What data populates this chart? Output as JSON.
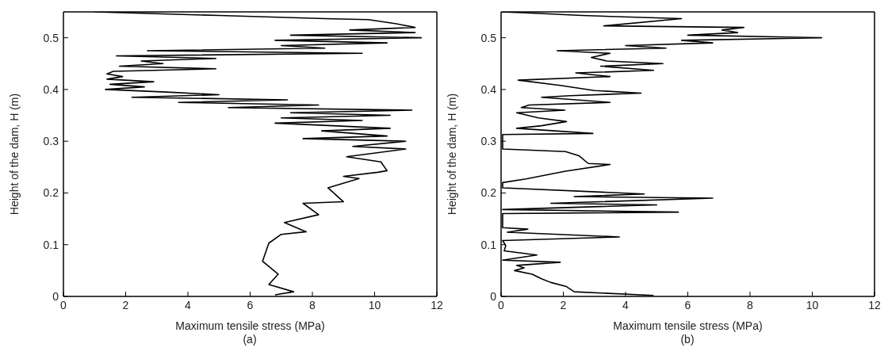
{
  "chart_data": [
    {
      "type": "line",
      "xlabel": "Maximum tensile stress (MPa)",
      "ylabel": "Height of the dam, H (m)",
      "annotations": [
        "(a)"
      ],
      "xlim": [
        0,
        12
      ],
      "ylim": [
        0,
        0.55
      ],
      "xticks": [
        0,
        2,
        4,
        6,
        8,
        10,
        12
      ],
      "yticks": [
        0,
        0.1,
        0.2,
        0.3,
        0.4,
        0.5
      ],
      "grid": false,
      "marker": "none",
      "line_style": "solid",
      "series": [
        {
          "color": "#000000",
          "x": [
            6.8,
            7.4,
            6.6,
            6.9,
            6.4,
            6.6,
            7.0,
            7.8,
            7.1,
            8.2,
            7.7,
            9.0,
            8.5,
            9.5,
            9.0,
            10.1,
            10.4,
            10.2,
            9.1,
            11.0,
            9.3,
            11.0,
            7.7,
            10.4,
            8.3,
            10.5,
            6.8,
            9.6,
            7.0,
            10.5,
            7.3,
            11.2,
            5.3,
            8.2,
            3.7,
            7.2,
            2.2,
            5.0,
            3.3,
            1.35,
            2.6,
            1.5,
            2.9,
            1.4,
            1.9,
            1.4,
            1.6,
            4.9,
            1.8,
            3.2,
            2.5,
            4.9,
            1.7,
            9.6,
            2.7,
            8.4,
            7.0,
            10.4,
            6.8,
            11.5,
            7.3,
            11.3,
            9.2,
            11.3,
            10.7,
            9.8,
            8.4,
            5.0,
            1.0
          ],
          "values": [
            0.003,
            0.009,
            0.023,
            0.043,
            0.068,
            0.103,
            0.12,
            0.125,
            0.143,
            0.158,
            0.18,
            0.183,
            0.21,
            0.228,
            0.232,
            0.24,
            0.243,
            0.26,
            0.27,
            0.285,
            0.29,
            0.3,
            0.305,
            0.31,
            0.32,
            0.325,
            0.335,
            0.34,
            0.345,
            0.35,
            0.355,
            0.36,
            0.365,
            0.37,
            0.375,
            0.38,
            0.385,
            0.39,
            0.395,
            0.4,
            0.405,
            0.41,
            0.415,
            0.42,
            0.425,
            0.43,
            0.435,
            0.44,
            0.445,
            0.45,
            0.455,
            0.46,
            0.465,
            0.47,
            0.475,
            0.48,
            0.485,
            0.49,
            0.495,
            0.5,
            0.505,
            0.51,
            0.515,
            0.52,
            0.527,
            0.535,
            0.537,
            0.543,
            0.55
          ]
        }
      ]
    },
    {
      "type": "line",
      "xlabel": "Maximum tensile stress (MPa)",
      "ylabel": "Height of the dam, H (m)",
      "annotations": [
        "(b)"
      ],
      "xlim": [
        0,
        12
      ],
      "ylim": [
        0,
        0.55
      ],
      "xticks": [
        0,
        2,
        4,
        6,
        8,
        10,
        12
      ],
      "yticks": [
        0,
        0.1,
        0.2,
        0.3,
        0.4,
        0.5
      ],
      "grid": false,
      "marker": "none",
      "line_style": "solid",
      "series": [
        {
          "color": "#000000",
          "x": [
            4.9,
            2.35,
            2.1,
            1.6,
            1.3,
            1.0,
            0.43,
            0.74,
            0.5,
            1.9,
            0.05,
            1.15,
            0.1,
            0.15,
            0.05,
            3.8,
            0.2,
            0.86,
            0.05,
            0.05,
            5.7,
            0.05,
            5.0,
            1.6,
            6.8,
            2.35,
            4.6,
            0.05,
            0.05,
            0.8,
            2.07,
            3.5,
            2.8,
            2.5,
            2.07,
            0.05,
            0.05,
            0.05,
            2.95,
            0.5,
            1.3,
            2.1,
            1.2,
            0.5,
            2.05,
            0.65,
            0.9,
            3.5,
            1.3,
            2.2,
            4.5,
            3.0,
            1.9,
            0.55,
            3.5,
            2.4,
            4.9,
            3.2,
            5.2,
            3.4,
            2.9,
            3.5,
            1.8,
            5.3,
            4.0,
            6.8,
            5.8,
            10.3,
            6.0,
            7.6,
            7.1,
            7.8,
            3.3,
            5.8,
            2.6,
            0.83,
            0.0
          ],
          "values": [
            0.002,
            0.009,
            0.019,
            0.027,
            0.034,
            0.043,
            0.05,
            0.055,
            0.06,
            0.066,
            0.07,
            0.08,
            0.088,
            0.098,
            0.108,
            0.115,
            0.124,
            0.13,
            0.133,
            0.16,
            0.163,
            0.168,
            0.177,
            0.18,
            0.19,
            0.193,
            0.198,
            0.21,
            0.22,
            0.227,
            0.242,
            0.255,
            0.257,
            0.272,
            0.28,
            0.285,
            0.303,
            0.313,
            0.315,
            0.325,
            0.33,
            0.338,
            0.345,
            0.355,
            0.36,
            0.365,
            0.37,
            0.375,
            0.385,
            0.388,
            0.393,
            0.398,
            0.408,
            0.418,
            0.425,
            0.432,
            0.437,
            0.445,
            0.45,
            0.455,
            0.462,
            0.47,
            0.475,
            0.48,
            0.485,
            0.49,
            0.495,
            0.5,
            0.505,
            0.51,
            0.515,
            0.52,
            0.523,
            0.537,
            0.543,
            0.548,
            0.55
          ]
        }
      ]
    }
  ]
}
